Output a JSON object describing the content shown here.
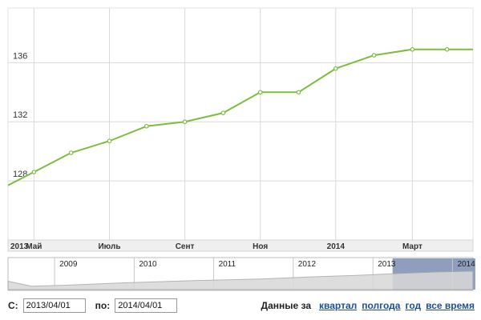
{
  "chart_data": {
    "type": "line",
    "series": [
      {
        "points": [
          {
            "x": "2013-03-25",
            "y": 127.7
          },
          {
            "x": "2013-04-15",
            "y": 128.6
          },
          {
            "x": "2013-05-15",
            "y": 129.9
          },
          {
            "x": "2013-06-15",
            "y": 130.7
          },
          {
            "x": "2013-07-15",
            "y": 131.7
          },
          {
            "x": "2013-08-15",
            "y": 132.0
          },
          {
            "x": "2013-09-15",
            "y": 132.6
          },
          {
            "x": "2013-10-15",
            "y": 134.0
          },
          {
            "x": "2013-11-15",
            "y": 134.0
          },
          {
            "x": "2013-12-15",
            "y": 135.6
          },
          {
            "x": "2014-01-15",
            "y": 136.5
          },
          {
            "x": "2014-02-15",
            "y": 136.9
          },
          {
            "x": "2014-03-15",
            "y": 136.9
          },
          {
            "x": "2014-04-05",
            "y": 136.9
          }
        ],
        "color": "#7dbd3e"
      }
    ],
    "y_ticks": [
      "128",
      "132",
      "136"
    ],
    "ylim": [
      124.0,
      139.7
    ],
    "xlim": [
      "2013-03-25",
      "2014-04-05"
    ],
    "x_ticks": [
      {
        "x": "2013-03-25",
        "label": "2013"
      },
      {
        "x": "2013-04-15",
        "label": "Май"
      },
      {
        "x": "2013-06-15",
        "label": "Июль"
      },
      {
        "x": "2013-08-15",
        "label": "Сент"
      },
      {
        "x": "2013-10-15",
        "label": "Ноя"
      },
      {
        "x": "2013-12-15",
        "label": "2014"
      },
      {
        "x": "2014-02-15",
        "label": "Март"
      }
    ],
    "grid": true,
    "navigator": {
      "years": [
        "2009",
        "2010",
        "2011",
        "2012",
        "2013",
        "2014"
      ],
      "selected_from": "2013/04/01",
      "selected_to": "2014/04/01"
    }
  },
  "controls": {
    "from_label": "С:",
    "from_value": "2013/04/01",
    "to_label": "по:",
    "to_value": "2014/04/01",
    "range_prefix": "Данные за",
    "ranges": [
      "квартал",
      "полгода",
      "год",
      "все время"
    ]
  },
  "colors": {
    "line": "#7dbd3e",
    "grid": "#d9d9d9",
    "navigator_selection": "#8394b6",
    "link": "#1f4e99"
  }
}
